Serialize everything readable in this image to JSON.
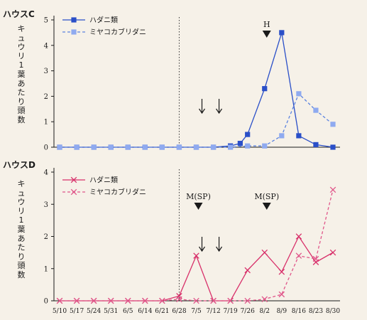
{
  "chart_data": [
    {
      "type": "line",
      "title": "ハウスC",
      "ylabel": "キュウリ1葉あたり頭数",
      "ylim": [
        0,
        5
      ],
      "yticks": [
        0,
        1,
        2,
        3,
        4,
        5
      ],
      "categories": [
        "5/10",
        "5/17",
        "5/24",
        "5/31",
        "6/5",
        "6/14",
        "6/21",
        "6/28",
        "7/5",
        "7/12",
        "7/19",
        "7/26",
        "8/2",
        "8/9",
        "8/16",
        "8/23",
        "8/30"
      ],
      "series": [
        {
          "name": "ハダニ類",
          "color": "#2a4fc8",
          "style": "solid",
          "marker": "square-filled",
          "x": [
            "5/10",
            "5/17",
            "5/24",
            "5/31",
            "6/5",
            "6/14",
            "6/21",
            "6/28",
            "7/5",
            "7/12",
            "7/19",
            "7/23",
            "7/26",
            "8/2",
            "8/9",
            "8/16",
            "8/23",
            "8/30"
          ],
          "values": [
            0,
            0,
            0,
            0,
            0,
            0,
            0,
            0,
            0,
            0,
            0.05,
            0.15,
            0.5,
            2.3,
            4.5,
            0.45,
            0.1,
            0
          ]
        },
        {
          "name": "ミヤコカブリダニ",
          "color": "#5b83e0",
          "style": "dashed",
          "marker": "square-light",
          "x": [
            "5/10",
            "5/17",
            "5/24",
            "5/31",
            "6/5",
            "6/14",
            "6/21",
            "6/28",
            "7/5",
            "7/12",
            "7/19",
            "7/26",
            "8/2",
            "8/9",
            "8/16",
            "8/23",
            "8/30"
          ],
          "values": [
            0,
            0,
            0,
            0,
            0,
            0,
            0,
            0,
            0,
            0,
            0,
            0.05,
            0.05,
            0.45,
            2.1,
            1.45,
            0.9
          ]
        }
      ],
      "divider_after": "6/28",
      "annotations": [
        {
          "type": "arrow-down",
          "at": "7/5"
        },
        {
          "type": "arrow-down",
          "at": "7/12"
        },
        {
          "type": "triangle-label",
          "at": "8/2",
          "label": "H"
        }
      ],
      "legend": "top-left"
    },
    {
      "type": "line",
      "title": "ハウスD",
      "ylabel": "キュウリ1葉あたり頭数",
      "ylim": [
        0,
        4
      ],
      "yticks": [
        0,
        1,
        2,
        3,
        4
      ],
      "categories": [
        "5/10",
        "5/17",
        "5/24",
        "5/31",
        "6/5",
        "6/14",
        "6/21",
        "6/28",
        "7/5",
        "7/12",
        "7/19",
        "7/26",
        "8/2",
        "8/9",
        "8/16",
        "8/23",
        "8/30"
      ],
      "series": [
        {
          "name": "ハダニ類",
          "color": "#d8306a",
          "style": "solid",
          "marker": "x",
          "values": [
            0,
            0,
            0,
            0,
            0,
            0,
            0,
            0.15,
            1.4,
            0,
            0,
            0.95,
            1.5,
            0.9,
            2.0,
            1.2,
            1.5
          ]
        },
        {
          "name": "ミヤコカブリダニ",
          "color": "#e0568a",
          "style": "dashed",
          "marker": "x",
          "values": [
            0,
            0,
            0,
            0,
            0,
            0,
            0,
            0.05,
            0,
            0,
            0,
            0,
            0.05,
            0.2,
            1.4,
            1.3,
            3.45
          ]
        }
      ],
      "divider_after": "6/28",
      "annotations": [
        {
          "type": "arrow-down",
          "at": "7/5"
        },
        {
          "type": "arrow-down",
          "at": "7/12"
        },
        {
          "type": "triangle-label",
          "at": "7/5",
          "label": "M(SP)"
        },
        {
          "type": "triangle-label",
          "at": "8/2",
          "label": "M(SP)"
        }
      ],
      "legend": "top-left"
    }
  ]
}
